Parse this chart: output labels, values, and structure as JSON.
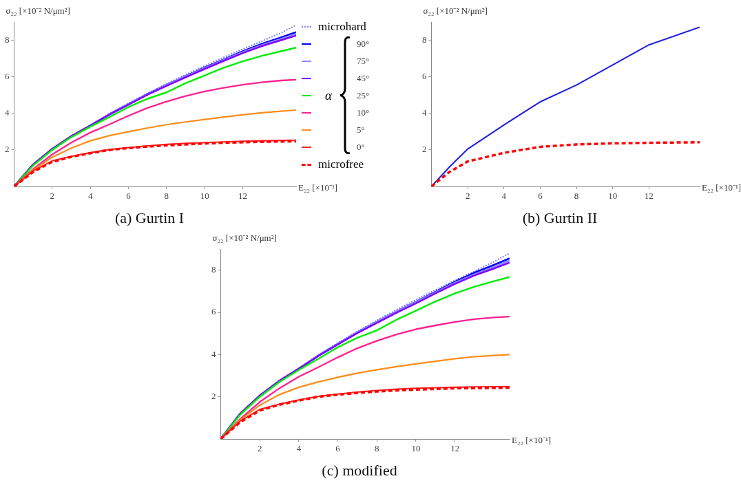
{
  "chart_data": [
    {
      "type": "line",
      "title": "(a) Gurtin I",
      "xlabel": "E₂₂ [×10⁻¹]",
      "ylabel": "σ₂₂ [×10⁻² N/μm²]",
      "legend_title": "α",
      "legend": "right",
      "xlim": [
        0,
        14.8
      ],
      "ylim": [
        0,
        9
      ],
      "xticks": [
        2,
        4,
        6,
        8,
        10,
        12
      ],
      "yticks": [
        2,
        4,
        6,
        8
      ],
      "grid": false,
      "x": [
        0,
        1,
        2,
        3,
        4,
        5,
        6,
        7,
        8,
        9,
        10,
        11,
        12,
        13,
        14,
        14.8
      ],
      "series": [
        {
          "name": "microhard",
          "color": "#8080ff",
          "line_style": "dotted",
          "values": [
            0,
            1.2,
            2.05,
            2.75,
            3.35,
            3.98,
            4.55,
            5.1,
            5.62,
            6.12,
            6.6,
            7.07,
            7.52,
            7.95,
            8.4,
            8.84
          ]
        },
        {
          "name": "90°",
          "color": "#0000ff",
          "line_style": "solid",
          "values": [
            0,
            1.2,
            2.05,
            2.75,
            3.33,
            3.95,
            4.5,
            5.05,
            5.55,
            6.03,
            6.5,
            6.95,
            7.4,
            7.8,
            8.15,
            8.44
          ]
        },
        {
          "name": "75°",
          "color": "#8c8cff",
          "line_style": "solid",
          "values": [
            0,
            1.2,
            2.05,
            2.75,
            3.33,
            3.95,
            4.5,
            5.05,
            5.55,
            6.03,
            6.48,
            6.92,
            7.35,
            7.74,
            8.08,
            8.35
          ]
        },
        {
          "name": "45°",
          "color": "#8000ff",
          "line_style": "solid",
          "values": [
            0,
            1.2,
            2.05,
            2.75,
            3.33,
            3.93,
            4.48,
            5.02,
            5.5,
            5.98,
            6.43,
            6.87,
            7.3,
            7.68,
            8.0,
            8.26
          ]
        },
        {
          "name": "25°",
          "color": "#00ee00",
          "line_style": "solid",
          "values": [
            0,
            1.15,
            2.0,
            2.7,
            3.27,
            3.8,
            4.35,
            4.8,
            5.15,
            5.65,
            6.08,
            6.5,
            6.85,
            7.15,
            7.4,
            7.6
          ]
        },
        {
          "name": "10°",
          "color": "#ff2090",
          "line_style": "solid",
          "values": [
            0,
            0.95,
            1.75,
            2.4,
            2.95,
            3.4,
            3.87,
            4.3,
            4.65,
            4.95,
            5.2,
            5.4,
            5.57,
            5.7,
            5.8,
            5.84
          ]
        },
        {
          "name": "5°",
          "color": "#ff8c1a",
          "line_style": "solid",
          "values": [
            0,
            0.9,
            1.6,
            2.1,
            2.5,
            2.78,
            3.0,
            3.2,
            3.38,
            3.53,
            3.67,
            3.8,
            3.92,
            4.03,
            4.12,
            4.18
          ]
        },
        {
          "name": "0°",
          "color": "#ff2020",
          "line_style": "solid",
          "values": [
            0,
            0.85,
            1.4,
            1.65,
            1.85,
            2.02,
            2.13,
            2.22,
            2.3,
            2.36,
            2.4,
            2.44,
            2.47,
            2.5,
            2.52,
            2.53
          ]
        },
        {
          "name": "microfree",
          "color": "#ff0000",
          "line_style": "dashed",
          "values": [
            0,
            0.8,
            1.35,
            1.62,
            1.82,
            2.0,
            2.1,
            2.18,
            2.25,
            2.3,
            2.35,
            2.39,
            2.42,
            2.44,
            2.46,
            2.47
          ]
        }
      ]
    },
    {
      "type": "line",
      "title": "(b) Gurtin II",
      "xlabel": "E₂₂ [×10⁻¹]",
      "ylabel": "σ₂₂ [×10⁻² N/μm²]",
      "xlim": [
        0,
        14.8
      ],
      "ylim": [
        0,
        9
      ],
      "xticks": [
        2,
        4,
        6,
        8,
        10,
        12
      ],
      "yticks": [
        2,
        4,
        6,
        8
      ],
      "grid": false,
      "x": [
        0,
        1,
        2,
        4,
        6,
        8,
        10,
        12,
        14.8
      ],
      "series": [
        {
          "color": "#2020e0",
          "line_style": "solid",
          "values": [
            0,
            1.07,
            2.05,
            3.37,
            4.63,
            5.55,
            6.65,
            7.75,
            8.72
          ]
        },
        {
          "color": "#ff0000",
          "line_style": "dashed",
          "values": [
            0,
            0.8,
            1.37,
            1.84,
            2.17,
            2.3,
            2.36,
            2.39,
            2.42
          ]
        }
      ]
    },
    {
      "type": "line",
      "title": "(c) modified",
      "xlabel": "E₂₂ [×10⁻¹]",
      "ylabel": "σ₂₂ [×10⁻² N/μm²]",
      "xlim": [
        0,
        14.8
      ],
      "ylim": [
        0,
        9
      ],
      "xticks": [
        2,
        4,
        6,
        8,
        10,
        12
      ],
      "yticks": [
        2,
        4,
        6,
        8
      ],
      "grid": false,
      "x": [
        0,
        1,
        2,
        3,
        4,
        5,
        6,
        7,
        8,
        9,
        10,
        11,
        12,
        13,
        14,
        14.8
      ],
      "series": [
        {
          "color": "#8080ff",
          "line_style": "dotted",
          "values": [
            0,
            1.2,
            2.05,
            2.75,
            3.35,
            3.98,
            4.55,
            5.1,
            5.62,
            6.12,
            6.6,
            7.07,
            7.52,
            7.95,
            8.4,
            8.81
          ]
        },
        {
          "color": "#0000ff",
          "line_style": "solid",
          "values": [
            0,
            1.2,
            2.05,
            2.75,
            3.33,
            3.95,
            4.5,
            5.05,
            5.55,
            6.03,
            6.5,
            6.97,
            7.45,
            7.88,
            8.25,
            8.56
          ]
        },
        {
          "color": "#8c8cff",
          "line_style": "solid",
          "values": [
            0,
            1.2,
            2.05,
            2.75,
            3.33,
            3.95,
            4.5,
            5.05,
            5.55,
            6.03,
            6.48,
            6.94,
            7.4,
            7.8,
            8.15,
            8.45
          ]
        },
        {
          "color": "#8000ff",
          "line_style": "solid",
          "values": [
            0,
            1.2,
            2.05,
            2.75,
            3.33,
            3.93,
            4.48,
            5.02,
            5.5,
            5.98,
            6.43,
            6.9,
            7.35,
            7.75,
            8.08,
            8.36
          ]
        },
        {
          "color": "#00ee00",
          "line_style": "solid",
          "values": [
            0,
            1.15,
            2.0,
            2.7,
            3.27,
            3.8,
            4.35,
            4.8,
            5.15,
            5.65,
            6.08,
            6.52,
            6.9,
            7.22,
            7.48,
            7.67
          ]
        },
        {
          "color": "#ff2090",
          "line_style": "solid",
          "values": [
            0,
            0.95,
            1.75,
            2.4,
            2.95,
            3.4,
            3.87,
            4.3,
            4.65,
            4.95,
            5.2,
            5.38,
            5.55,
            5.68,
            5.76,
            5.8
          ]
        },
        {
          "color": "#ff8c1a",
          "line_style": "solid",
          "values": [
            0,
            0.9,
            1.6,
            2.1,
            2.45,
            2.7,
            2.92,
            3.12,
            3.28,
            3.43,
            3.56,
            3.68,
            3.8,
            3.9,
            3.96,
            4.0
          ]
        },
        {
          "color": "#ff2020",
          "line_style": "solid",
          "values": [
            0,
            0.85,
            1.4,
            1.65,
            1.85,
            2.02,
            2.13,
            2.22,
            2.3,
            2.36,
            2.4,
            2.43,
            2.45,
            2.47,
            2.48,
            2.48
          ]
        },
        {
          "color": "#ff0000",
          "line_style": "dashed",
          "values": [
            0,
            0.8,
            1.35,
            1.62,
            1.82,
            2.0,
            2.1,
            2.18,
            2.25,
            2.3,
            2.34,
            2.37,
            2.4,
            2.41,
            2.42,
            2.43
          ]
        }
      ]
    }
  ]
}
